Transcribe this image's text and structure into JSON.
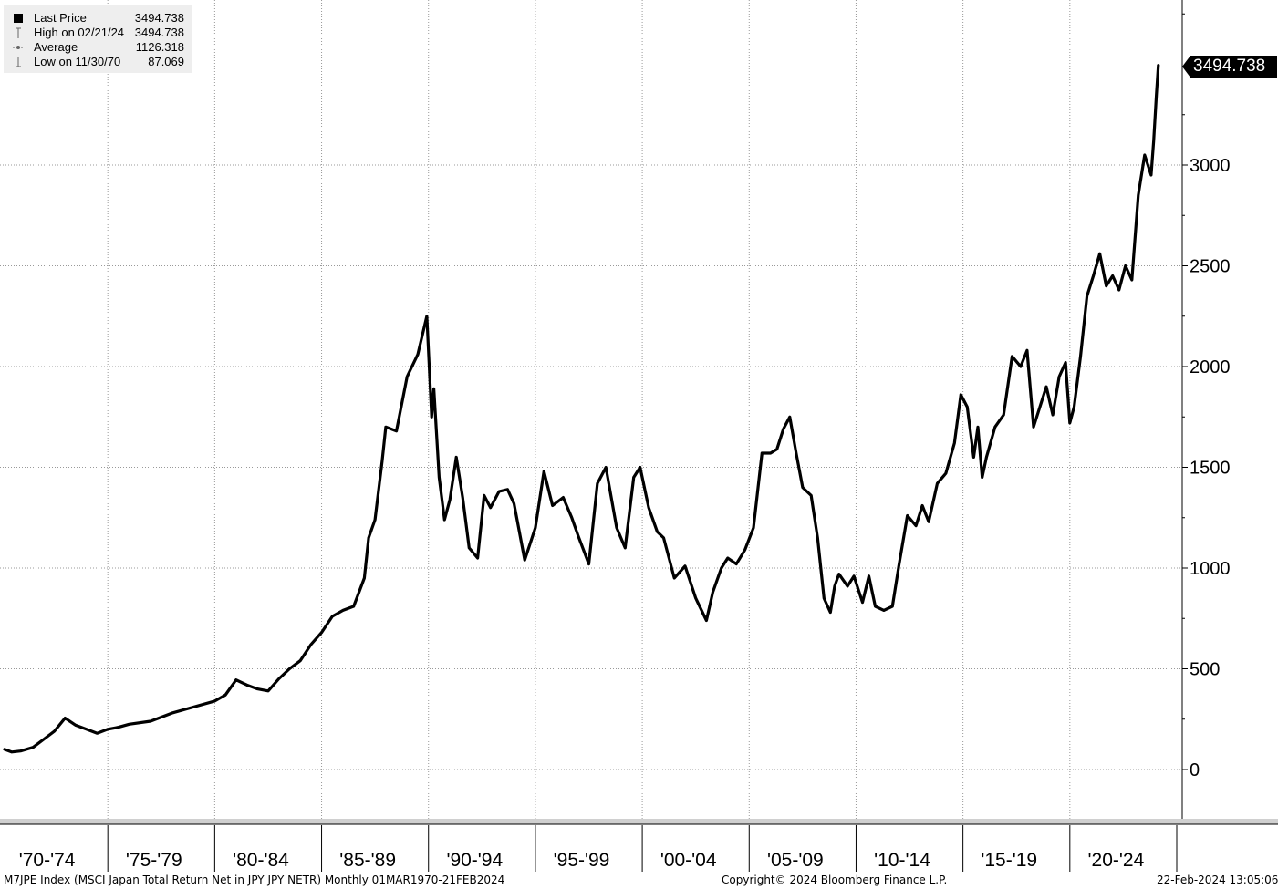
{
  "legend": {
    "items": [
      {
        "label": "Last Price",
        "value": "3494.738",
        "icon": "filled-square-icon"
      },
      {
        "label": "High on 02/21/24",
        "value": "3494.738",
        "icon": "high-marker-icon"
      },
      {
        "label": "Average",
        "value": "1126.318",
        "icon": "average-marker-icon"
      },
      {
        "label": "Low on 11/30/70",
        "value": "87.069",
        "icon": "low-marker-icon"
      }
    ]
  },
  "last_price_tag": "3494.738",
  "footer": {
    "left": "M7JPE Index (MSCI Japan Total Return Net in JPY JPY NETR)  Monthly 01MAR1970-21FEB2024",
    "center": "Copyright© 2024 Bloomberg Finance L.P.",
    "right": "22-Feb-2024 13:05:06"
  },
  "colors": {
    "line": "#000000",
    "grid": "#999999",
    "legend_bg": "#eeeeee",
    "tag_bg": "#000000"
  },
  "chart_data": {
    "type": "line",
    "title": "",
    "xlabel": "",
    "ylabel": "",
    "ylim": [
      -250,
      3850
    ],
    "xlim": [
      1970.0,
      2025.0
    ],
    "yticks": [
      0,
      500,
      1000,
      1500,
      2000,
      2500,
      3000
    ],
    "xtick_labels": [
      "'70-'74",
      "'75-'79",
      "'80-'84",
      "'85-'89",
      "'90-'94",
      "'95-'99",
      "'00-'04",
      "'05-'09",
      "'10-'14",
      "'15-'19",
      "'20-'24"
    ],
    "grid": true,
    "series": [
      {
        "name": "",
        "x": [
          1970.17,
          1970.5,
          1970.92,
          1971.5,
          1972.0,
          1972.5,
          1973.0,
          1973.5,
          1974.0,
          1974.5,
          1975.0,
          1975.5,
          1976.0,
          1977.0,
          1978.0,
          1979.0,
          1980.0,
          1980.5,
          1981.0,
          1981.5,
          1982.0,
          1982.5,
          1983.0,
          1983.5,
          1984.0,
          1984.5,
          1985.0,
          1985.5,
          1986.0,
          1986.5,
          1987.0,
          1987.2,
          1987.5,
          1987.83,
          1988.0,
          1988.5,
          1989.0,
          1989.5,
          1989.92,
          1990.15,
          1990.25,
          1990.5,
          1990.75,
          1991.0,
          1991.3,
          1991.6,
          1991.9,
          1992.3,
          1992.6,
          1992.9,
          1993.3,
          1993.7,
          1994.0,
          1994.5,
          1995.0,
          1995.4,
          1995.8,
          1996.3,
          1996.7,
          1997.0,
          1997.5,
          1997.9,
          1998.3,
          1998.8,
          1999.2,
          1999.6,
          1999.9,
          2000.3,
          2000.7,
          2001.0,
          2001.5,
          2002.0,
          2002.5,
          2003.0,
          2003.3,
          2003.7,
          2004.0,
          2004.4,
          2004.8,
          2005.2,
          2005.6,
          2006.0,
          2006.3,
          2006.6,
          2006.9,
          2007.2,
          2007.5,
          2007.9,
          2008.2,
          2008.5,
          2008.8,
          2009.0,
          2009.2,
          2009.6,
          2009.9,
          2010.3,
          2010.6,
          2010.9,
          2011.3,
          2011.7,
          2012.0,
          2012.4,
          2012.8,
          2013.1,
          2013.4,
          2013.8,
          2014.2,
          2014.6,
          2014.9,
          2015.2,
          2015.5,
          2015.7,
          2015.9,
          2016.1,
          2016.5,
          2016.9,
          2017.3,
          2017.7,
          2018.0,
          2018.3,
          2018.6,
          2018.9,
          2019.2,
          2019.5,
          2019.8,
          2020.0,
          2020.2,
          2020.5,
          2020.8,
          2021.1,
          2021.4,
          2021.7,
          2022.0,
          2022.3,
          2022.6,
          2022.9,
          2023.2,
          2023.5,
          2023.8,
          2023.92,
          2024.05,
          2024.14
        ],
        "values": [
          100,
          87,
          92,
          110,
          150,
          190,
          255,
          220,
          200,
          180,
          200,
          210,
          225,
          240,
          280,
          310,
          340,
          370,
          445,
          420,
          400,
          390,
          450,
          500,
          540,
          620,
          680,
          760,
          790,
          810,
          950,
          1150,
          1240,
          1530,
          1700,
          1680,
          1950,
          2060,
          2250,
          1750,
          1890,
          1450,
          1240,
          1340,
          1550,
          1350,
          1100,
          1050,
          1360,
          1300,
          1380,
          1390,
          1320,
          1040,
          1200,
          1480,
          1310,
          1350,
          1250,
          1160,
          1020,
          1420,
          1500,
          1200,
          1100,
          1450,
          1500,
          1300,
          1180,
          1150,
          950,
          1010,
          850,
          740,
          880,
          1000,
          1050,
          1020,
          1090,
          1200,
          1570,
          1570,
          1590,
          1690,
          1750,
          1570,
          1400,
          1360,
          1150,
          850,
          780,
          910,
          970,
          910,
          960,
          830,
          960,
          810,
          790,
          810,
          1010,
          1260,
          1210,
          1310,
          1230,
          1420,
          1470,
          1620,
          1860,
          1800,
          1550,
          1700,
          1450,
          1550,
          1700,
          1760,
          2050,
          2000,
          2080,
          1700,
          1800,
          1900,
          1760,
          1950,
          2020,
          1720,
          1800,
          2050,
          2350,
          2450,
          2560,
          2400,
          2450,
          2380,
          2500,
          2430,
          2850,
          3050,
          2950,
          3120,
          3350,
          3494.738
        ]
      }
    ],
    "last_value": 3494.738,
    "high": {
      "date": "02/21/24",
      "value": 3494.738
    },
    "average": 1126.318,
    "low": {
      "date": "11/30/70",
      "value": 87.069
    }
  }
}
